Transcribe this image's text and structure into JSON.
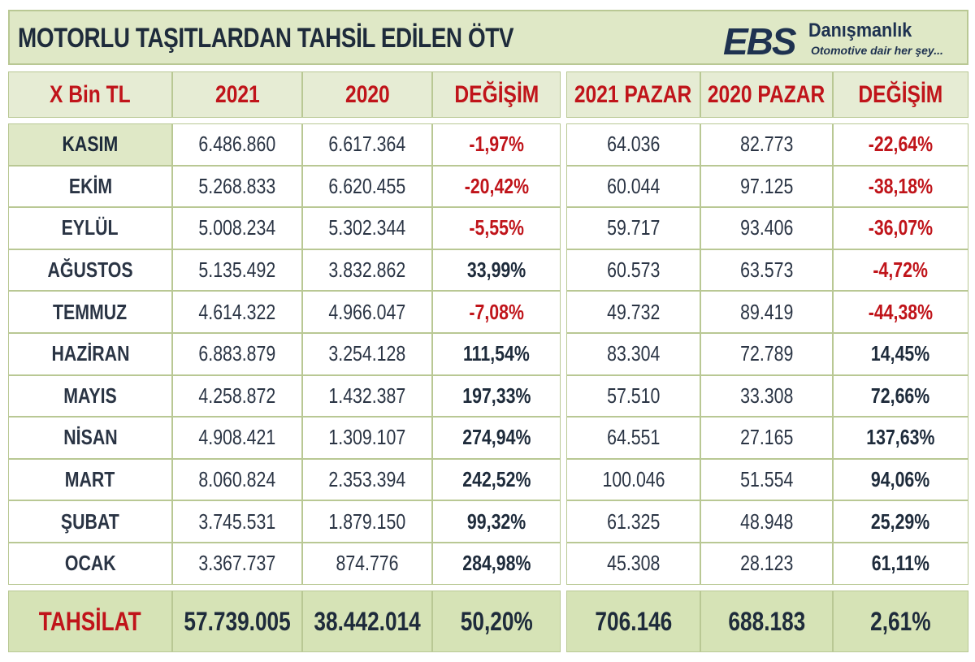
{
  "title": "MOTORLU TAŞITLARDAN TAHSİL EDİLEN ÖTV",
  "logo": {
    "brand": "EBS",
    "name": "Danışmanlık",
    "slogan": "Otomotive dair her şey..."
  },
  "colors": {
    "negative": "#c0141a",
    "header_bg": "#e6ecd4",
    "total_bg": "#d6e3b6",
    "text": "#1e2b3b"
  },
  "chart_data": {
    "type": "table",
    "columns": [
      "X Bin TL",
      "2021",
      "2020",
      "DEĞİŞİM",
      "2021 PAZAR",
      "2020 PAZAR",
      "DEĞİŞİM"
    ],
    "rows": [
      [
        "KASIM",
        "6.486.860",
        "6.617.364",
        "-1,97%",
        "64.036",
        "82.773",
        "-22,64%"
      ],
      [
        "EKİM",
        "5.268.833",
        "6.620.455",
        "-20,42%",
        "60.044",
        "97.125",
        "-38,18%"
      ],
      [
        "EYLÜL",
        "5.008.234",
        "5.302.344",
        "-5,55%",
        "59.717",
        "93.406",
        "-36,07%"
      ],
      [
        "AĞUSTOS",
        "5.135.492",
        "3.832.862",
        "33,99%",
        "60.573",
        "63.573",
        "-4,72%"
      ],
      [
        "TEMMUZ",
        "4.614.322",
        "4.966.047",
        "-7,08%",
        "49.732",
        "89.419",
        "-44,38%"
      ],
      [
        "HAZİRAN",
        "6.883.879",
        "3.254.128",
        "111,54%",
        "83.304",
        "72.789",
        "14,45%"
      ],
      [
        "MAYIS",
        "4.258.872",
        "1.432.387",
        "197,33%",
        "57.510",
        "33.308",
        "72,66%"
      ],
      [
        "NİSAN",
        "4.908.421",
        "1.309.107",
        "274,94%",
        "64.551",
        "27.165",
        "137,63%"
      ],
      [
        "MART",
        "8.060.824",
        "2.353.394",
        "242,52%",
        "100.046",
        "51.554",
        "94,06%"
      ],
      [
        "ŞUBAT",
        "3.745.531",
        "1.879.150",
        "99,32%",
        "61.325",
        "48.948",
        "25,29%"
      ],
      [
        "OCAK",
        "3.367.737",
        "874.776",
        "284,98%",
        "45.308",
        "28.123",
        "61,11%"
      ]
    ],
    "total": [
      "TAHSİLAT",
      "57.739.005",
      "38.442.014",
      "50,20%",
      "706.146",
      "688.183",
      "2,61%"
    ]
  }
}
